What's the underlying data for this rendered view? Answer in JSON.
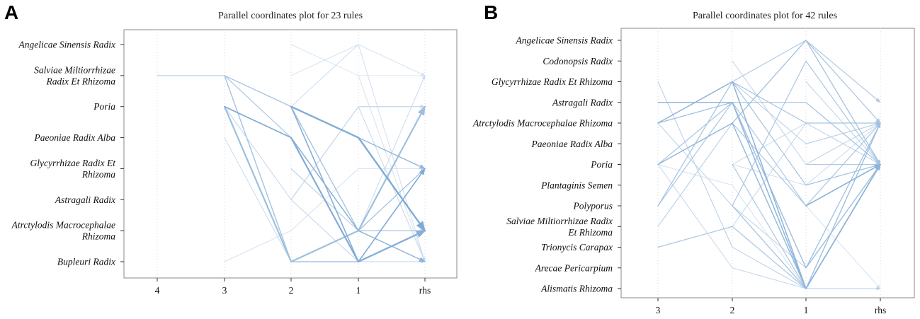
{
  "chart_data": [
    {
      "type": "parallel-coordinates",
      "panel_label": "A",
      "title": "Parallel coordinates plot for 23 rules",
      "axes": [
        "4",
        "3",
        "2",
        "1",
        "rhs"
      ],
      "items": [
        "Angelicae Sinensis Radix",
        "Salviae Miltiorrhizae Radix Et Rhizoma",
        "Poria",
        "Paeoniae Radix Alba",
        "Glycyrrhizae Radix Et Rhizoma",
        "Astragali Radix",
        "Atrctylodis Macrocephalae Rhizoma",
        "Bupleuri Radix"
      ],
      "item_labels": [
        [
          "Angelicae Sinensis Radix"
        ],
        [
          "Salviae Miltiorrhizae",
          "Radix Et Rhizoma"
        ],
        [
          "Poria"
        ],
        [
          "Paeoniae Radix Alba"
        ],
        [
          "Glycyrrhizae Radix Et",
          "Rhizoma"
        ],
        [
          "Astragali Radix"
        ],
        [
          "Atrctylodis Macrocephalae",
          "Rhizoma"
        ],
        [
          "Bupleuri Radix"
        ]
      ],
      "rules": [
        {
          "path": [
            1,
            1,
            2,
            3,
            6
          ],
          "intensity": 0.35,
          "width": 1.2
        },
        {
          "path": [
            null,
            2,
            3,
            7,
            4
          ],
          "intensity": 0.85,
          "width": 1.6
        },
        {
          "path": [
            null,
            1,
            2,
            6,
            4
          ],
          "intensity": 0.55,
          "width": 1.2
        },
        {
          "path": [
            null,
            2,
            7,
            6,
            2
          ],
          "intensity": 0.6,
          "width": 2.2
        },
        {
          "path": [
            null,
            1,
            7,
            7,
            6
          ],
          "intensity": 0.55,
          "width": 1.4
        },
        {
          "path": [
            null,
            3,
            7,
            6,
            1
          ],
          "intensity": 0.25,
          "width": 1.0
        },
        {
          "path": [
            null,
            2,
            5,
            7,
            7
          ],
          "intensity": 0.3,
          "width": 1.0
        },
        {
          "path": [
            null,
            2,
            3,
            6,
            7
          ],
          "intensity": 0.75,
          "width": 1.5
        },
        {
          "path": [
            null,
            1,
            3,
            6,
            6
          ],
          "intensity": 0.5,
          "width": 1.2
        },
        {
          "path": [
            null,
            7,
            6,
            4,
            4
          ],
          "intensity": 0.15,
          "width": 1.0
        },
        {
          "path": [
            null,
            null,
            2,
            3,
            6
          ],
          "intensity": 0.85,
          "width": 2.4
        },
        {
          "path": [
            null,
            null,
            2,
            7,
            6
          ],
          "intensity": 0.8,
          "width": 1.6
        },
        {
          "path": [
            null,
            null,
            2,
            0,
            7
          ],
          "intensity": 0.2,
          "width": 1.0
        },
        {
          "path": [
            null,
            null,
            2,
            6,
            4
          ],
          "intensity": 0.5,
          "width": 1.2
        },
        {
          "path": [
            null,
            null,
            3,
            7,
            6
          ],
          "intensity": 0.75,
          "width": 2.2
        },
        {
          "path": [
            null,
            null,
            1,
            0,
            1
          ],
          "intensity": 0.15,
          "width": 1.0
        },
        {
          "path": [
            null,
            null,
            null,
            7,
            6
          ],
          "intensity": 0.8,
          "width": 2.2
        },
        {
          "path": [
            null,
            null,
            null,
            3,
            4
          ],
          "intensity": 0.7,
          "width": 1.4
        },
        {
          "path": [
            null,
            null,
            null,
            2,
            7
          ],
          "intensity": 0.3,
          "width": 1.0
        },
        {
          "path": [
            null,
            null,
            null,
            1,
            7
          ],
          "intensity": 0.15,
          "width": 1.0
        },
        {
          "path": [
            null,
            null,
            5,
            2,
            2
          ],
          "intensity": 0.3,
          "width": 1.2
        },
        {
          "path": [
            null,
            null,
            0,
            1,
            1
          ],
          "intensity": 0.1,
          "width": 1.0
        },
        {
          "path": [
            null,
            null,
            4,
            6,
            6
          ],
          "intensity": 0.35,
          "width": 1.2
        }
      ]
    },
    {
      "type": "parallel-coordinates",
      "panel_label": "B",
      "title": "Parallel coordinates plot for 42 rules",
      "axes": [
        "3",
        "2",
        "1",
        "rhs"
      ],
      "items": [
        "Angelicae Sinensis Radix",
        "Codonopsis Radix",
        "Glycyrrhizae Radix Et Rhizoma",
        "Astragali Radix",
        "Atrctylodis Macrocephalae Rhizoma",
        "Paeoniae Radix Alba",
        "Poria",
        "Plantaginis Semen",
        "Polyporus",
        "Salviae Miltiorrhizae Radix Et Rhizoma",
        "Trionycis Carapax",
        "Arecae Pericarpium",
        "Alismatis Rhizoma"
      ],
      "item_labels": [
        [
          "Angelicae Sinensis Radix"
        ],
        [
          "Codonopsis Radix"
        ],
        [
          "Glycyrrhizae Radix Et Rhizoma"
        ],
        [
          "Astragali Radix"
        ],
        [
          "Atrctylodis Macrocephalae Rhizoma"
        ],
        [
          "Paeoniae Radix Alba"
        ],
        [
          "Poria"
        ],
        [
          "Plantaginis Semen"
        ],
        [
          "Polyporus"
        ],
        [
          "Salviae Miltiorrhizae Radix",
          "Et Rhizoma"
        ],
        [
          "Trionycis Carapax"
        ],
        [
          "Arecae Pericarpium"
        ],
        [
          "Alismatis Rhizoma"
        ]
      ],
      "rules": [
        {
          "path": [
            3,
            3,
            12,
            6
          ],
          "intensity": 0.7,
          "width": 1.4
        },
        {
          "path": [
            4,
            2,
            12,
            6
          ],
          "intensity": 0.75,
          "width": 1.5
        },
        {
          "path": [
            4,
            3,
            11,
            4
          ],
          "intensity": 0.6,
          "width": 1.2
        },
        {
          "path": [
            6,
            4,
            12,
            6
          ],
          "intensity": 0.7,
          "width": 1.4
        },
        {
          "path": [
            6,
            3,
            3,
            6
          ],
          "intensity": 0.5,
          "width": 1.2
        },
        {
          "path": [
            8,
            2,
            4,
            4
          ],
          "intensity": 0.55,
          "width": 1.2
        },
        {
          "path": [
            9,
            4,
            0,
            4
          ],
          "intensity": 0.45,
          "width": 1.0
        },
        {
          "path": [
            10,
            9,
            12,
            6
          ],
          "intensity": 0.5,
          "width": 1.2
        },
        {
          "path": [
            8,
            3,
            11,
            6
          ],
          "intensity": 0.5,
          "width": 1.2
        },
        {
          "path": [
            2,
            10,
            12,
            12
          ],
          "intensity": 0.4,
          "width": 1.0
        },
        {
          "path": [
            6,
            11,
            12,
            6
          ],
          "intensity": 0.3,
          "width": 1.0
        },
        {
          "path": [
            4,
            8,
            11,
            4
          ],
          "intensity": 0.35,
          "width": 1.0
        },
        {
          "path": [
            6,
            7,
            12,
            4
          ],
          "intensity": 0.15,
          "width": 1.0
        },
        {
          "path": [
            null,
            2,
            7,
            6
          ],
          "intensity": 0.55,
          "width": 1.2
        },
        {
          "path": [
            null,
            2,
            0,
            3
          ],
          "intensity": 0.45,
          "width": 1.2
        },
        {
          "path": [
            null,
            4,
            8,
            6
          ],
          "intensity": 0.5,
          "width": 1.2
        },
        {
          "path": [
            null,
            3,
            8,
            4
          ],
          "intensity": 0.5,
          "width": 1.2
        },
        {
          "path": [
            null,
            1,
            6,
            6
          ],
          "intensity": 0.35,
          "width": 1.0
        },
        {
          "path": [
            null,
            6,
            4,
            4
          ],
          "intensity": 0.3,
          "width": 1.0
        },
        {
          "path": [
            null,
            6,
            12,
            6
          ],
          "intensity": 0.5,
          "width": 1.2
        },
        {
          "path": [
            null,
            4,
            0,
            6
          ],
          "intensity": 0.6,
          "width": 1.2
        },
        {
          "path": [
            null,
            8,
            1,
            6
          ],
          "intensity": 0.5,
          "width": 1.2
        },
        {
          "path": [
            null,
            3,
            12,
            6
          ],
          "intensity": 0.65,
          "width": 1.4
        },
        {
          "path": [
            null,
            6,
            7,
            6
          ],
          "intensity": 0.2,
          "width": 1.0
        },
        {
          "path": [
            null,
            9,
            4,
            4
          ],
          "intensity": 0.3,
          "width": 1.0
        },
        {
          "path": [
            null,
            2,
            5,
            4
          ],
          "intensity": 0.4,
          "width": 1.0
        },
        {
          "path": [
            null,
            8,
            12,
            4
          ],
          "intensity": 0.6,
          "width": 1.2
        },
        {
          "path": [
            null,
            3,
            11,
            6
          ],
          "intensity": 0.55,
          "width": 1.2
        },
        {
          "path": [
            null,
            null,
            8,
            6
          ],
          "intensity": 0.75,
          "width": 1.6
        },
        {
          "path": [
            null,
            null,
            6,
            4
          ],
          "intensity": 0.4,
          "width": 1.0
        },
        {
          "path": [
            null,
            null,
            5,
            4
          ],
          "intensity": 0.3,
          "width": 1.0
        },
        {
          "path": [
            null,
            null,
            7,
            4
          ],
          "intensity": 0.25,
          "width": 1.0
        },
        {
          "path": [
            null,
            null,
            0,
            4
          ],
          "intensity": 0.5,
          "width": 1.2
        },
        {
          "path": [
            null,
            null,
            2,
            6
          ],
          "intensity": 0.35,
          "width": 1.0
        },
        {
          "path": [
            null,
            null,
            3,
            6
          ],
          "intensity": 0.4,
          "width": 1.0
        },
        {
          "path": [
            null,
            null,
            11,
            6
          ],
          "intensity": 0.55,
          "width": 1.4
        },
        {
          "path": [
            null,
            null,
            12,
            6
          ],
          "intensity": 0.7,
          "width": 1.4
        },
        {
          "path": [
            null,
            null,
            8,
            12
          ],
          "intensity": 0.15,
          "width": 1.0
        },
        {
          "path": [
            null,
            null,
            6,
            6
          ],
          "intensity": 0.45,
          "width": 1.0
        },
        {
          "path": [
            null,
            null,
            4,
            6
          ],
          "intensity": 0.4,
          "width": 1.0
        },
        {
          "path": [
            null,
            null,
            12,
            4
          ],
          "intensity": 0.6,
          "width": 1.2
        },
        {
          "path": [
            null,
            null,
            0,
            6
          ],
          "intensity": 0.35,
          "width": 1.0
        }
      ]
    }
  ]
}
